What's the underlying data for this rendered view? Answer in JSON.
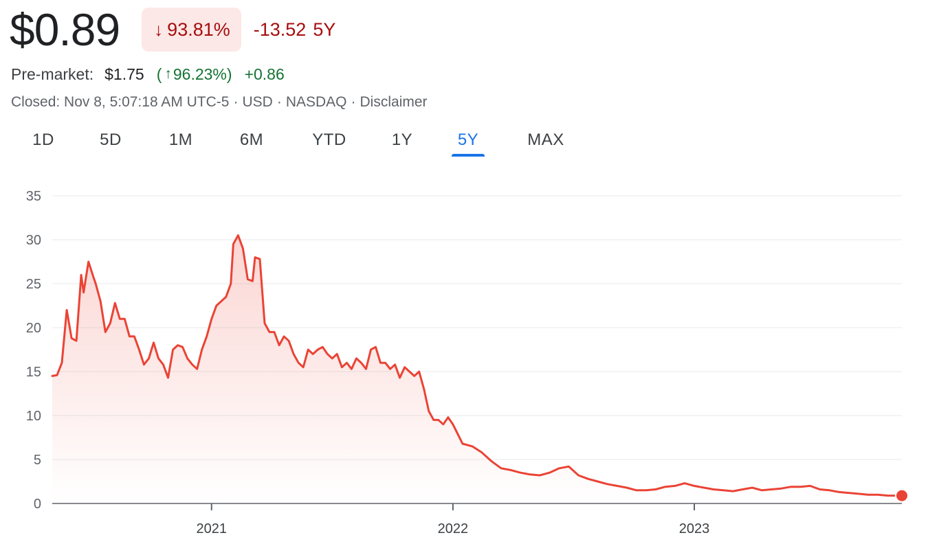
{
  "quote": {
    "price": "$0.89",
    "change_arrow": "↓",
    "change_pct": "93.81%",
    "change_abs": "-13.52",
    "period": "5Y"
  },
  "premarket": {
    "label": "Pre-market:",
    "price": "$1.75",
    "paren_open": "(",
    "arrow": "↑",
    "pct": "96.23%",
    "paren_close": ")",
    "abs": "+0.86"
  },
  "meta": {
    "closed": "Closed: Nov 8, 5:07:18 AM UTC-5",
    "separator": "·",
    "currency": "USD",
    "exchange": "NASDAQ",
    "disclaimer": "Disclaimer"
  },
  "tabs": [
    {
      "label": "1D",
      "active": false
    },
    {
      "label": "5D",
      "active": false
    },
    {
      "label": "1M",
      "active": false
    },
    {
      "label": "6M",
      "active": false
    },
    {
      "label": "YTD",
      "active": false
    },
    {
      "label": "1Y",
      "active": false
    },
    {
      "label": "5Y",
      "active": true
    },
    {
      "label": "MAX",
      "active": false
    }
  ],
  "colors": {
    "negative": "#a50e0e",
    "negative_bg": "#fce8e6",
    "positive": "#137333",
    "accent": "#1a73e8",
    "line": "#ea4335",
    "grid": "#e8eaed"
  },
  "chart_data": {
    "type": "area",
    "title": "",
    "xlabel": "",
    "ylabel": "",
    "ylim": [
      0,
      35
    ],
    "yticks": [
      0,
      5,
      10,
      15,
      20,
      25,
      30,
      35
    ],
    "xticks": [
      {
        "label": "2021",
        "x": 2021.0
      },
      {
        "label": "2022",
        "x": 2022.0
      },
      {
        "label": "2023",
        "x": 2023.0
      }
    ],
    "xlim": [
      2020.34,
      2023.86
    ],
    "grid": true,
    "series": [
      {
        "x": [
          2020.34,
          2020.36,
          2020.38,
          2020.4,
          2020.42,
          2020.44,
          2020.46,
          2020.47,
          2020.49,
          2020.51,
          2020.52,
          2020.54,
          2020.56,
          2020.58,
          2020.6,
          2020.62,
          2020.64,
          2020.66,
          2020.68,
          2020.7,
          2020.72,
          2020.74,
          2020.76,
          2020.78,
          2020.8,
          2020.82,
          2020.84,
          2020.86,
          2020.88,
          2020.9,
          2020.92,
          2020.94,
          2020.96,
          2020.98,
          2021.0,
          2021.02,
          2021.04,
          2021.06,
          2021.08,
          2021.09,
          2021.11,
          2021.13,
          2021.15,
          2021.17,
          2021.18,
          2021.2,
          2021.22,
          2021.24,
          2021.26,
          2021.28,
          2021.3,
          2021.32,
          2021.34,
          2021.36,
          2021.38,
          2021.4,
          2021.42,
          2021.44,
          2021.46,
          2021.48,
          2021.5,
          2021.52,
          2021.54,
          2021.56,
          2021.58,
          2021.6,
          2021.62,
          2021.64,
          2021.66,
          2021.68,
          2021.7,
          2021.72,
          2021.74,
          2021.76,
          2021.78,
          2021.8,
          2021.82,
          2021.84,
          2021.86,
          2021.88,
          2021.9,
          2021.92,
          2021.94,
          2021.96,
          2021.98,
          2022.0,
          2022.04,
          2022.08,
          2022.12,
          2022.16,
          2022.2,
          2022.24,
          2022.28,
          2022.32,
          2022.36,
          2022.4,
          2022.44,
          2022.48,
          2022.52,
          2022.56,
          2022.6,
          2022.64,
          2022.68,
          2022.72,
          2022.76,
          2022.8,
          2022.84,
          2022.88,
          2022.92,
          2022.96,
          2023.0,
          2023.04,
          2023.08,
          2023.12,
          2023.16,
          2023.2,
          2023.24,
          2023.28,
          2023.32,
          2023.36,
          2023.4,
          2023.44,
          2023.48,
          2023.52,
          2023.56,
          2023.6,
          2023.64,
          2023.68,
          2023.72,
          2023.76,
          2023.8,
          2023.86
        ],
        "y": [
          14.5,
          14.6,
          16.0,
          22.0,
          18.8,
          18.5,
          26.0,
          24.0,
          27.5,
          25.8,
          25.0,
          23.0,
          19.5,
          20.5,
          22.8,
          21.0,
          21.0,
          19.0,
          19.0,
          17.5,
          15.8,
          16.5,
          18.3,
          16.5,
          15.8,
          14.3,
          17.5,
          18.0,
          17.8,
          16.5,
          15.8,
          15.3,
          17.5,
          19.0,
          21.0,
          22.5,
          23.0,
          23.5,
          25.0,
          29.5,
          30.5,
          29.0,
          25.5,
          25.3,
          28.0,
          27.8,
          20.5,
          19.5,
          19.5,
          18.0,
          19.0,
          18.5,
          17.0,
          16.0,
          15.5,
          17.5,
          17.0,
          17.5,
          17.8,
          17.0,
          16.5,
          17.0,
          15.5,
          16.0,
          15.3,
          16.5,
          16.0,
          15.3,
          17.5,
          17.8,
          16.0,
          16.0,
          15.3,
          15.8,
          14.3,
          15.5,
          15.0,
          14.5,
          15.0,
          13.0,
          10.5,
          9.5,
          9.5,
          9.0,
          9.8,
          9.0,
          6.8,
          6.5,
          5.8,
          4.8,
          4.0,
          3.8,
          3.5,
          3.3,
          3.2,
          3.5,
          4.0,
          4.2,
          3.2,
          2.8,
          2.5,
          2.2,
          2.0,
          1.8,
          1.5,
          1.5,
          1.6,
          1.9,
          2.0,
          2.3,
          2.0,
          1.8,
          1.6,
          1.5,
          1.4,
          1.6,
          1.8,
          1.5,
          1.6,
          1.7,
          1.9,
          1.9,
          2.0,
          1.6,
          1.5,
          1.3,
          1.2,
          1.1,
          1.0,
          1.0,
          0.9,
          0.89
        ]
      }
    ]
  }
}
